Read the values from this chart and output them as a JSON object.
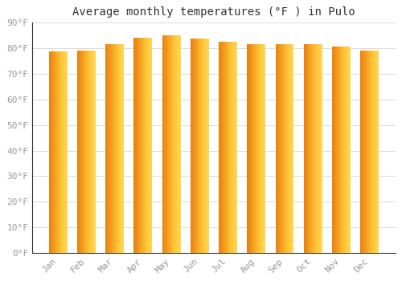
{
  "title": "Average monthly temperatures (°F ) in Pulo",
  "months": [
    "Jan",
    "Feb",
    "Mar",
    "Apr",
    "May",
    "Jun",
    "Jul",
    "Aug",
    "Sep",
    "Oct",
    "Nov",
    "Dec"
  ],
  "values": [
    78.5,
    79.0,
    81.5,
    84.0,
    85.0,
    83.5,
    82.5,
    81.5,
    81.5,
    81.5,
    80.5,
    79.0
  ],
  "bar_color_left": "#E8820A",
  "bar_color_right": "#FFD050",
  "background_color": "#FFFFFF",
  "plot_bg_color": "#FFFFFF",
  "grid_color": "#CCCCCC",
  "ylim": [
    0,
    90
  ],
  "yticks": [
    0,
    10,
    20,
    30,
    40,
    50,
    60,
    70,
    80,
    90
  ],
  "ytick_labels": [
    "0°F",
    "10°F",
    "20°F",
    "30°F",
    "40°F",
    "50°F",
    "60°F",
    "70°F",
    "80°F",
    "90°F"
  ],
  "title_fontsize": 10,
  "tick_fontsize": 8,
  "tick_color": "#999999",
  "axis_color": "#333333",
  "bar_width": 0.65
}
